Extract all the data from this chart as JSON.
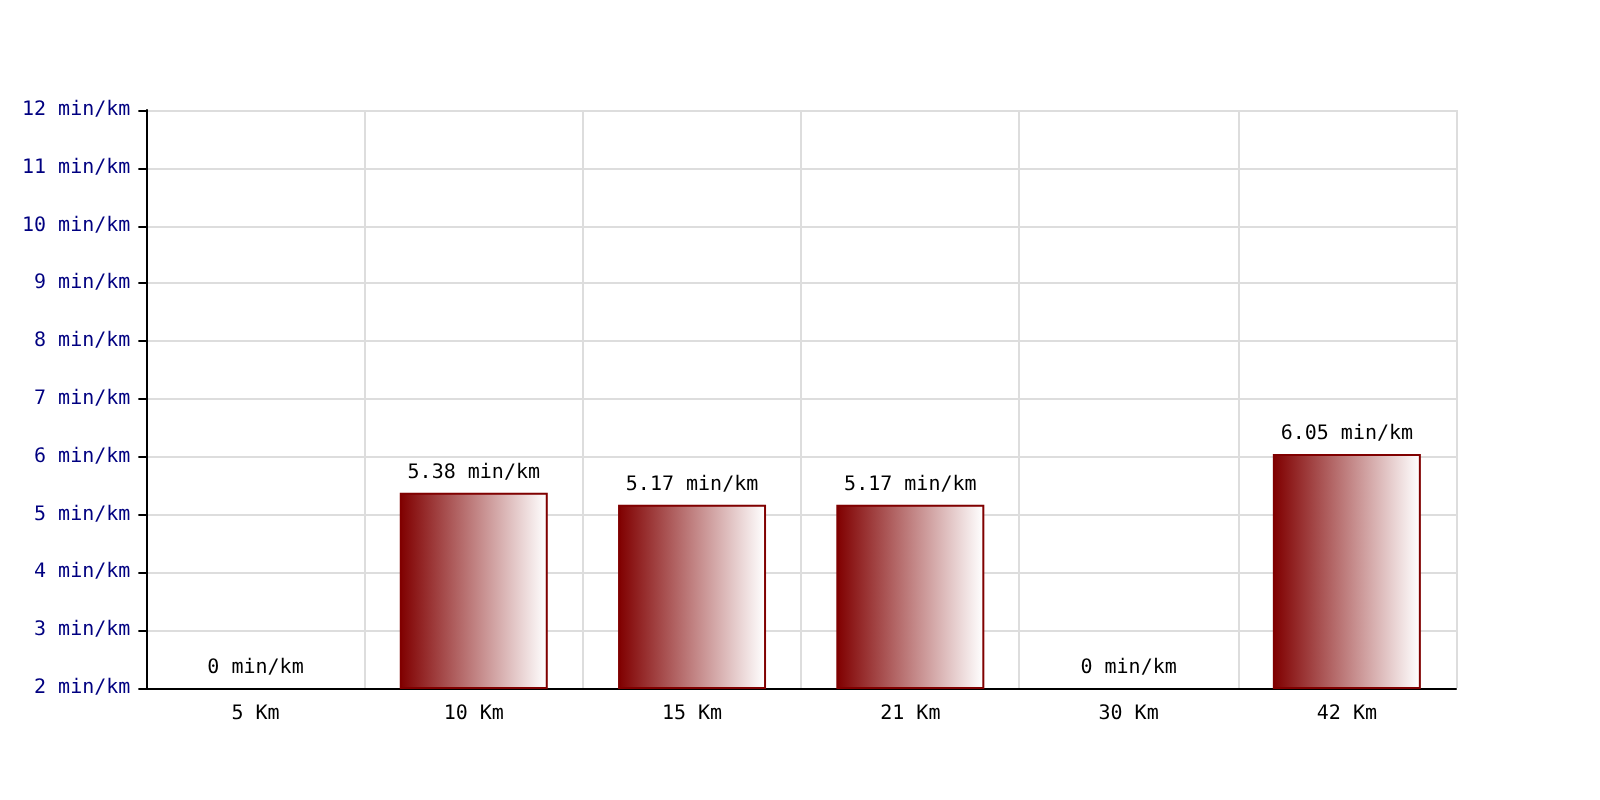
{
  "chart_data": {
    "type": "bar",
    "categories": [
      "5 Km",
      "10 Km",
      "15 Km",
      "21 Km",
      "30 Km",
      "42 Km"
    ],
    "values": [
      null,
      5.38,
      5.17,
      5.17,
      null,
      6.05
    ],
    "value_labels": [
      "0 min/km",
      "5.38 min/km",
      "5.17 min/km",
      "5.17 min/km",
      "0 min/km",
      "6.05 min/km"
    ],
    "color": "#800000",
    "ylim": [
      2,
      12
    ],
    "yticks": [
      {
        "value": 2,
        "label": "2 min/km"
      },
      {
        "value": 3,
        "label": "3 min/km"
      },
      {
        "value": 4,
        "label": "4 min/km"
      },
      {
        "value": 5,
        "label": "5 min/km"
      },
      {
        "value": 6,
        "label": "6 min/km"
      },
      {
        "value": 7,
        "label": "7 min/km"
      },
      {
        "value": 8,
        "label": "8 min/km"
      },
      {
        "value": 9,
        "label": "9 min/km"
      },
      {
        "value": 10,
        "label": "10 min/km"
      },
      {
        "value": 11,
        "label": "11 min/km"
      },
      {
        "value": 12,
        "label": "12 min/km"
      }
    ],
    "grid": true
  }
}
